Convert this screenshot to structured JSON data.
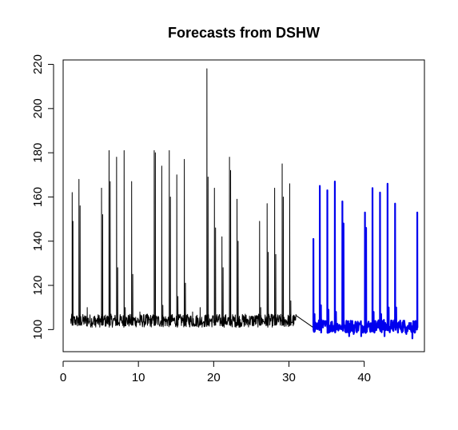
{
  "chart_data": {
    "type": "line",
    "title": "Forecasts from DSHW",
    "xlabel": "",
    "ylabel": "",
    "xlim": [
      0,
      48
    ],
    "ylim": [
      90,
      222
    ],
    "x_ticks": [
      0,
      10,
      20,
      30,
      40
    ],
    "y_ticks": [
      100,
      120,
      140,
      160,
      180,
      200,
      220
    ],
    "grid": false,
    "legend": "none",
    "series": [
      {
        "role": "observed",
        "color": "#000000",
        "x_range": [
          1,
          31
        ],
        "baseline": 101,
        "spikes": [
          {
            "x": 1.2,
            "y": 162
          },
          {
            "x": 1.3,
            "y": 149
          },
          {
            "x": 2.1,
            "y": 168
          },
          {
            "x": 2.25,
            "y": 156
          },
          {
            "x": 3.2,
            "y": 110
          },
          {
            "x": 4.2,
            "y": 106
          },
          {
            "x": 5.1,
            "y": 164
          },
          {
            "x": 5.25,
            "y": 152
          },
          {
            "x": 6.1,
            "y": 181
          },
          {
            "x": 6.25,
            "y": 167
          },
          {
            "x": 7.1,
            "y": 178
          },
          {
            "x": 7.25,
            "y": 128
          },
          {
            "x": 8.1,
            "y": 181
          },
          {
            "x": 8.25,
            "y": 110
          },
          {
            "x": 9.1,
            "y": 167
          },
          {
            "x": 9.25,
            "y": 125
          },
          {
            "x": 10.2,
            "y": 108
          },
          {
            "x": 11.2,
            "y": 107
          },
          {
            "x": 12.1,
            "y": 181
          },
          {
            "x": 12.25,
            "y": 180
          },
          {
            "x": 13.1,
            "y": 174
          },
          {
            "x": 13.25,
            "y": 111
          },
          {
            "x": 14.1,
            "y": 181
          },
          {
            "x": 14.25,
            "y": 160
          },
          {
            "x": 15.1,
            "y": 170
          },
          {
            "x": 15.25,
            "y": 115
          },
          {
            "x": 16.1,
            "y": 177
          },
          {
            "x": 16.25,
            "y": 121
          },
          {
            "x": 17.2,
            "y": 108
          },
          {
            "x": 18.2,
            "y": 110
          },
          {
            "x": 19.1,
            "y": 218
          },
          {
            "x": 19.25,
            "y": 169
          },
          {
            "x": 20.1,
            "y": 164
          },
          {
            "x": 20.25,
            "y": 146
          },
          {
            "x": 21.1,
            "y": 142
          },
          {
            "x": 21.25,
            "y": 128
          },
          {
            "x": 22.1,
            "y": 178
          },
          {
            "x": 22.25,
            "y": 172
          },
          {
            "x": 23.1,
            "y": 159
          },
          {
            "x": 23.25,
            "y": 140
          },
          {
            "x": 24.2,
            "y": 107
          },
          {
            "x": 25.2,
            "y": 106
          },
          {
            "x": 26.1,
            "y": 149
          },
          {
            "x": 26.25,
            "y": 110
          },
          {
            "x": 27.1,
            "y": 157
          },
          {
            "x": 27.25,
            "y": 135
          },
          {
            "x": 28.1,
            "y": 164
          },
          {
            "x": 28.25,
            "y": 134
          },
          {
            "x": 29.1,
            "y": 175
          },
          {
            "x": 29.25,
            "y": 160
          },
          {
            "x": 30.1,
            "y": 166
          },
          {
            "x": 30.25,
            "y": 113
          }
        ]
      },
      {
        "role": "forecast",
        "color": "#0000EE",
        "x_range": [
          33.2,
          47.1
        ],
        "baseline": 100,
        "spikes": [
          {
            "x": 33.25,
            "y": 141
          },
          {
            "x": 33.4,
            "y": 107
          },
          {
            "x": 34.1,
            "y": 165
          },
          {
            "x": 34.25,
            "y": 111
          },
          {
            "x": 35.1,
            "y": 163
          },
          {
            "x": 35.25,
            "y": 109
          },
          {
            "x": 36.1,
            "y": 167
          },
          {
            "x": 36.25,
            "y": 108
          },
          {
            "x": 37.1,
            "y": 158
          },
          {
            "x": 37.25,
            "y": 148
          },
          {
            "x": 38.2,
            "y": 104
          },
          {
            "x": 39.2,
            "y": 103
          },
          {
            "x": 40.1,
            "y": 153
          },
          {
            "x": 40.25,
            "y": 146
          },
          {
            "x": 41.1,
            "y": 164
          },
          {
            "x": 41.25,
            "y": 108
          },
          {
            "x": 42.1,
            "y": 162
          },
          {
            "x": 42.25,
            "y": 107
          },
          {
            "x": 43.1,
            "y": 166
          },
          {
            "x": 43.25,
            "y": 110
          },
          {
            "x": 44.1,
            "y": 157
          },
          {
            "x": 44.25,
            "y": 110
          },
          {
            "x": 45.2,
            "y": 104
          },
          {
            "x": 46.2,
            "y": 103
          },
          {
            "x": 47.05,
            "y": 153
          }
        ],
        "dips": [
          {
            "x": 38.0,
            "y": 97
          },
          {
            "x": 38.6,
            "y": 98
          },
          {
            "x": 39.6,
            "y": 97
          },
          {
            "x": 42.7,
            "y": 97
          },
          {
            "x": 45.6,
            "y": 98
          },
          {
            "x": 46.4,
            "y": 96
          }
        ]
      }
    ]
  }
}
